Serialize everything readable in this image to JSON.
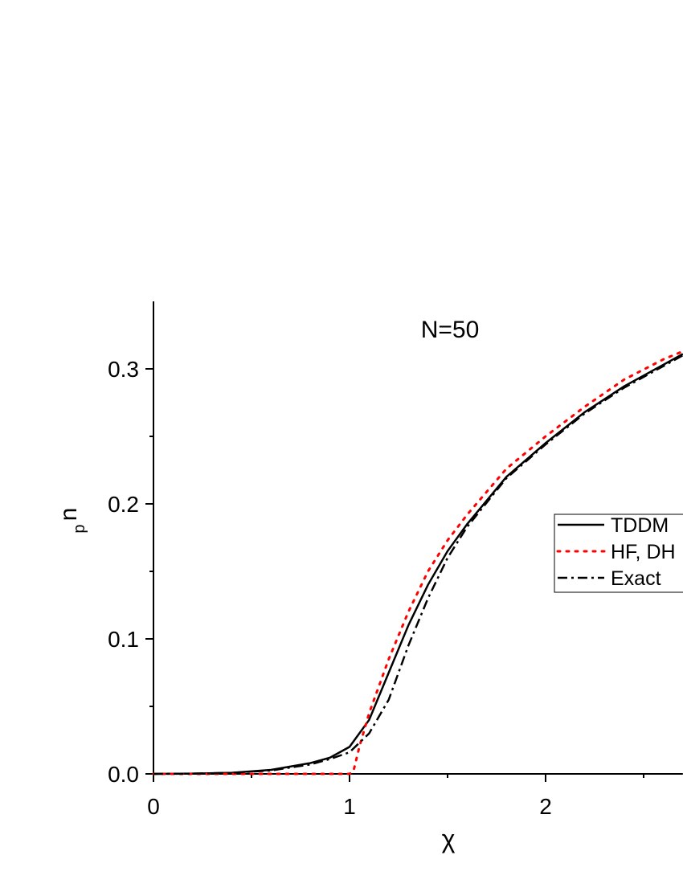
{
  "chart_data": {
    "type": "line",
    "title": "N=50",
    "xlabel": "χ",
    "ylabel": "n",
    "ylabel_subscript": "p",
    "xlim": [
      0,
      2.7
    ],
    "ylim": [
      0,
      0.35
    ],
    "xticks": [
      0,
      1,
      2
    ],
    "xminorticks": [
      0.5,
      1.5,
      2.5
    ],
    "yticks": [
      {
        "value": 0,
        "label": "0.0"
      },
      0.1,
      0.2,
      0.3
    ],
    "yminorticks": [
      0.05,
      0.15,
      0.25
    ],
    "grid": false,
    "legend": "right",
    "series": [
      {
        "name": "TDDM",
        "color": "#000000",
        "dash": "solid",
        "x": [
          0,
          0.2,
          0.4,
          0.6,
          0.8,
          0.9,
          1.0,
          1.1,
          1.2,
          1.3,
          1.4,
          1.5,
          1.6,
          1.8,
          2.0,
          2.2,
          2.4,
          2.6,
          2.7
        ],
        "values": [
          0,
          0.0002,
          0.0008,
          0.003,
          0.008,
          0.012,
          0.02,
          0.04,
          0.075,
          0.11,
          0.14,
          0.165,
          0.185,
          0.22,
          0.245,
          0.268,
          0.287,
          0.303,
          0.311
        ]
      },
      {
        "name": "HF, DH",
        "color": "#ff0000",
        "dash": "dotted",
        "x": [
          0,
          0.5,
          1.0,
          1.02,
          1.05,
          1.1,
          1.2,
          1.3,
          1.4,
          1.5,
          1.6,
          1.8,
          2.0,
          2.2,
          2.4,
          2.6,
          2.7
        ],
        "values": [
          0,
          0,
          0,
          0.002,
          0.02,
          0.045,
          0.085,
          0.12,
          0.15,
          0.173,
          0.192,
          0.226,
          0.25,
          0.272,
          0.292,
          0.307,
          0.313
        ]
      },
      {
        "name": "Exact",
        "color": "#000000",
        "dash": "dashdot",
        "x": [
          0,
          0.2,
          0.4,
          0.6,
          0.8,
          0.9,
          1.0,
          1.1,
          1.2,
          1.3,
          1.4,
          1.5,
          1.6,
          1.8,
          2.0,
          2.2,
          2.4,
          2.6,
          2.7
        ],
        "values": [
          0,
          0.0002,
          0.0008,
          0.0025,
          0.007,
          0.011,
          0.016,
          0.03,
          0.055,
          0.095,
          0.13,
          0.16,
          0.183,
          0.219,
          0.244,
          0.267,
          0.286,
          0.302,
          0.31
        ]
      }
    ]
  }
}
